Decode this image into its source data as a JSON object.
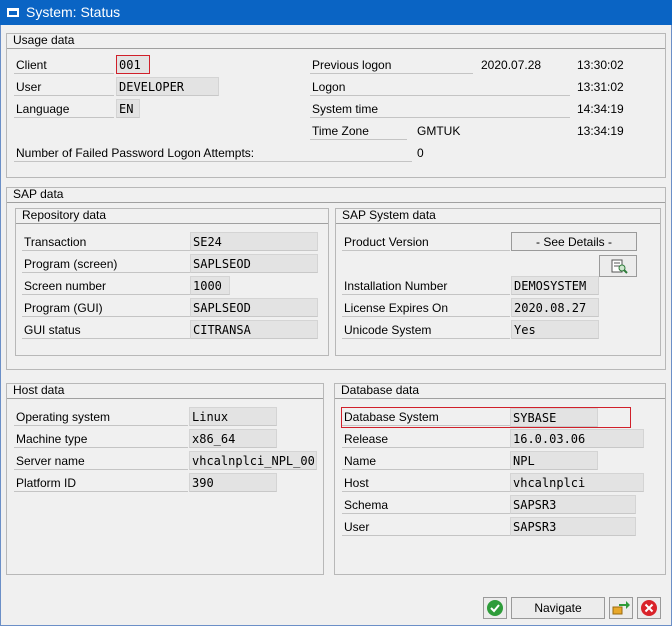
{
  "window": {
    "title": "System: Status"
  },
  "usage": {
    "heading": "Usage data",
    "client_label": "Client",
    "client": "001",
    "user_label": "User",
    "user": "DEVELOPER",
    "language_label": "Language",
    "language": "EN",
    "prev_logon_label": "Previous logon",
    "prev_logon_date": "2020.07.28",
    "prev_logon_time": "13:30:02",
    "logon_label": "Logon",
    "logon_time": "13:31:02",
    "system_time_label": "System time",
    "system_time": "14:34:19",
    "timezone_label": "Time Zone",
    "timezone": "GMTUK",
    "timezone_time": "13:34:19",
    "failed_label": "Number of Failed Password Logon Attempts:",
    "failed": "0"
  },
  "sap": {
    "heading": "SAP data",
    "repo": {
      "heading": "Repository data",
      "transaction_label": "Transaction",
      "transaction": "SE24",
      "program_screen_label": "Program (screen)",
      "program_screen": "SAPLSEOD",
      "screen_number_label": "Screen number",
      "screen_number": "1000",
      "program_gui_label": "Program (GUI)",
      "program_gui": "SAPLSEOD",
      "gui_status_label": "GUI status",
      "gui_status": "CITRANSA"
    },
    "system": {
      "heading": "SAP System data",
      "product_version_label": "Product Version",
      "product_version": "- See Details -",
      "install_number_label": "Installation Number",
      "install_number": "DEMOSYSTEM",
      "license_label": "License Expires On",
      "license": "2020.08.27",
      "unicode_label": "Unicode System",
      "unicode": "Yes"
    }
  },
  "host": {
    "heading": "Host data",
    "os_label": "Operating system",
    "os": "Linux",
    "machine_label": "Machine type",
    "machine": "x86_64",
    "server_label": "Server name",
    "server": "vhcalnplci_NPL_00",
    "platform_label": "Platform ID",
    "platform": "390"
  },
  "database": {
    "heading": "Database data",
    "system_label": "Database System",
    "system": "SYBASE",
    "release_label": "Release",
    "release": "16.0.03.06",
    "name_label": "Name",
    "name": "NPL",
    "host_label": "Host",
    "host": "vhcalnplci",
    "schema_label": "Schema",
    "schema": "SAPSR3",
    "user_label": "User",
    "user": "SAPSR3"
  },
  "buttons": {
    "navigate": "Navigate"
  },
  "colors": {
    "titlebar": "#0a64c4",
    "highlight": "#d0202a",
    "ok": "#2e9c3a",
    "cancel": "#d9232a"
  }
}
